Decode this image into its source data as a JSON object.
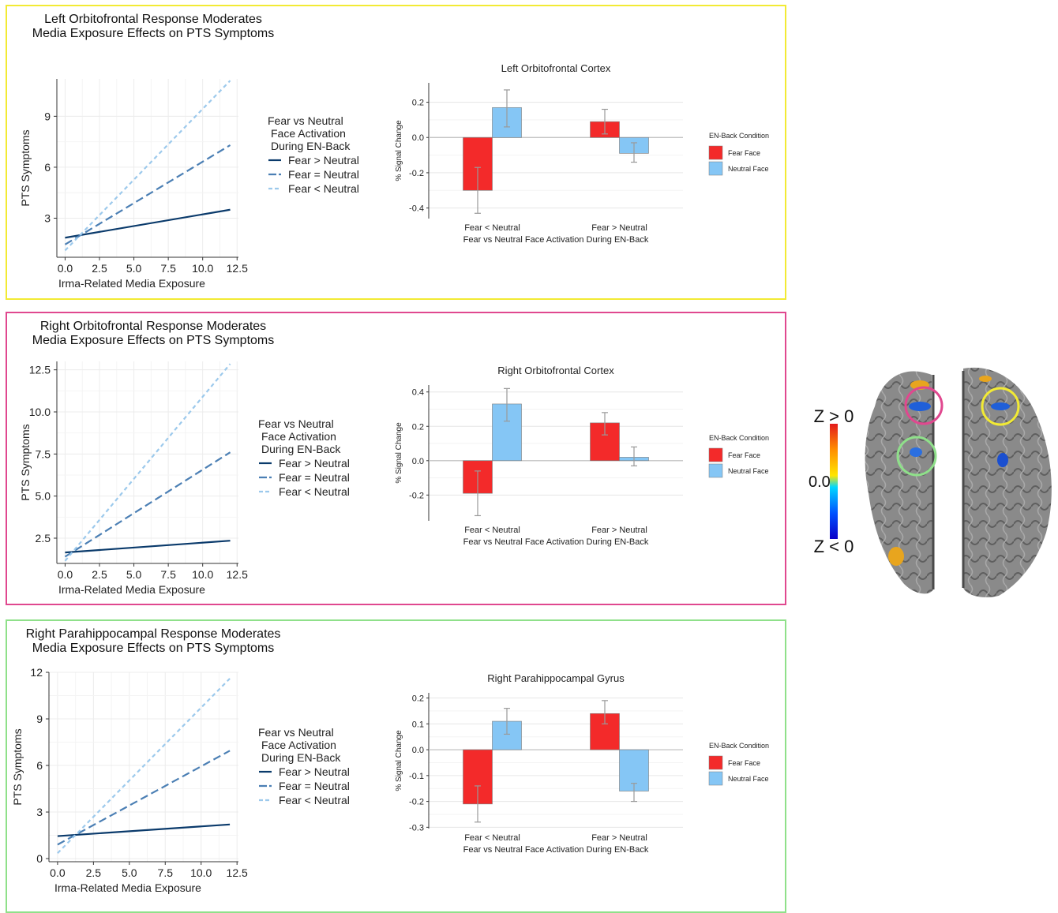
{
  "colors": {
    "panel_borders": [
      "#f2ea34",
      "#e0488f",
      "#8fe08a"
    ],
    "fear_gt": "#0a3a6b",
    "fear_eq": "#4b7fb4",
    "fear_lt": "#9cc9ec",
    "fear_face": "#f32a2a",
    "neutral_face": "#85c6f5",
    "circles": [
      "#e0488f",
      "#f2ea34",
      "#8fe08a"
    ]
  },
  "legend": {
    "title_line1": "Fear vs Neutral",
    "title_line2": "Face Activation",
    "title_line3": "During EN-Back",
    "items": [
      "Fear > Neutral",
      "Fear = Neutral",
      "Fear < Neutral"
    ]
  },
  "bar_legend": {
    "title": "EN-Back Condition",
    "items": [
      "Fear Face",
      "Neutral Face"
    ]
  },
  "brain": {
    "z_pos": "Z > 0",
    "zero": "0.0",
    "z_neg": "Z < 0"
  },
  "chart_data": [
    {
      "type": "line",
      "panel_title": "Left Orbitofrontal Response Moderates\nMedia Exposure Effects on PTS Symptoms",
      "xlabel": "Irma-Related Media Exposure",
      "ylabel": "PTS Symptoms",
      "xlim": [
        -0.6,
        12.6
      ],
      "ylim": [
        0.7,
        11.2
      ],
      "xticks": [
        "0.0",
        "2.5",
        "5.0",
        "7.5",
        "10.0",
        "12.5"
      ],
      "xtick_values": [
        0,
        2.5,
        5,
        7.5,
        10,
        12.5
      ],
      "yticks": [
        "3",
        "6",
        "9"
      ],
      "ytick_values": [
        3,
        6,
        9
      ],
      "series": [
        {
          "name": "Fear > Neutral",
          "x": [
            0,
            12
          ],
          "y": [
            1.85,
            3.5
          ]
        },
        {
          "name": "Fear = Neutral",
          "x": [
            0,
            12
          ],
          "y": [
            1.45,
            7.3
          ]
        },
        {
          "name": "Fear < Neutral",
          "x": [
            0,
            12
          ],
          "y": [
            1.1,
            11.1
          ]
        }
      ]
    },
    {
      "type": "bar",
      "title": "Left Orbitofrontal Cortex",
      "xlabel": "Fear vs Neutral Face Activation During EN-Back",
      "ylabel": "% Signal Change",
      "categories": [
        "Fear < Neutral",
        "Fear > Neutral"
      ],
      "ylim": [
        -0.46,
        0.31
      ],
      "yticks": [
        "0.2",
        "0.0",
        "-0.2",
        "-0.4"
      ],
      "ytick_values": [
        0.2,
        0,
        -0.2,
        -0.4
      ],
      "series": [
        {
          "name": "Fear Face",
          "values": [
            -0.3,
            0.09
          ],
          "err_low": [
            -0.43,
            0.02
          ],
          "err_high": [
            -0.17,
            0.16
          ]
        },
        {
          "name": "Neutral Face",
          "values": [
            0.17,
            -0.09
          ],
          "err_low": [
            0.06,
            -0.14
          ],
          "err_high": [
            0.27,
            -0.03
          ]
        }
      ]
    },
    {
      "type": "line",
      "panel_title": "Right Orbitofrontal Response Moderates\nMedia Exposure Effects on PTS Symptoms",
      "xlabel": "Irma-Related Media Exposure",
      "ylabel": "PTS Symptoms",
      "xlim": [
        -0.6,
        12.6
      ],
      "ylim": [
        1.0,
        13.0
      ],
      "xticks": [
        "0.0",
        "2.5",
        "5.0",
        "7.5",
        "10.0",
        "12.5"
      ],
      "xtick_values": [
        0,
        2.5,
        5,
        7.5,
        10,
        12.5
      ],
      "yticks": [
        "2.5",
        "5.0",
        "7.5",
        "10.0",
        "12.5"
      ],
      "ytick_values": [
        2.5,
        5,
        7.5,
        10,
        12.5
      ],
      "series": [
        {
          "name": "Fear > Neutral",
          "x": [
            0,
            12
          ],
          "y": [
            1.65,
            2.35
          ]
        },
        {
          "name": "Fear = Neutral",
          "x": [
            0,
            12
          ],
          "y": [
            1.4,
            7.6
          ]
        },
        {
          "name": "Fear < Neutral",
          "x": [
            0,
            12
          ],
          "y": [
            1.15,
            12.85
          ]
        }
      ]
    },
    {
      "type": "bar",
      "title": "Right Orbitofrontal Cortex",
      "xlabel": "Fear vs Neutral Face Activation During EN-Back",
      "ylabel": "% Signal Change",
      "categories": [
        "Fear < Neutral",
        "Fear > Neutral"
      ],
      "ylim": [
        -0.35,
        0.44
      ],
      "yticks": [
        "0.4",
        "0.2",
        "0.0",
        "-0.2"
      ],
      "ytick_values": [
        0.4,
        0.2,
        0,
        -0.2
      ],
      "series": [
        {
          "name": "Fear Face",
          "values": [
            -0.19,
            0.22
          ],
          "err_low": [
            -0.32,
            0.15
          ],
          "err_high": [
            -0.06,
            0.28
          ]
        },
        {
          "name": "Neutral Face",
          "values": [
            0.33,
            0.02
          ],
          "err_low": [
            0.23,
            -0.03
          ],
          "err_high": [
            0.42,
            0.08
          ]
        }
      ]
    },
    {
      "type": "line",
      "panel_title": "Right Parahippocampal Response Moderates\nMedia Exposure Effects on PTS Symptoms",
      "xlabel": "Irma-Related Media Exposure",
      "ylabel": "PTS Symptoms",
      "xlim": [
        -0.6,
        12.6
      ],
      "ylim": [
        -0.2,
        12.0
      ],
      "xticks": [
        "0.0",
        "2.5",
        "5.0",
        "7.5",
        "10.0",
        "12.5"
      ],
      "xtick_values": [
        0,
        2.5,
        5,
        7.5,
        10,
        12.5
      ],
      "yticks": [
        "0",
        "3",
        "6",
        "9",
        "12"
      ],
      "ytick_values": [
        0,
        3,
        6,
        9,
        12
      ],
      "series": [
        {
          "name": "Fear > Neutral",
          "x": [
            0,
            12
          ],
          "y": [
            1.45,
            2.2
          ]
        },
        {
          "name": "Fear = Neutral",
          "x": [
            0,
            12
          ],
          "y": [
            0.9,
            6.95
          ]
        },
        {
          "name": "Fear < Neutral",
          "x": [
            0,
            12
          ],
          "y": [
            0.35,
            11.6
          ]
        }
      ]
    },
    {
      "type": "bar",
      "title": "Right Parahippocampal Gyrus",
      "xlabel": "Fear vs Neutral Face Activation During EN-Back",
      "ylabel": "% Signal Change",
      "categories": [
        "Fear < Neutral",
        "Fear > Neutral"
      ],
      "ylim": [
        -0.305,
        0.22
      ],
      "yticks": [
        "0.2",
        "0.1",
        "0.0",
        "-0.1",
        "-0.2",
        "-0.3"
      ],
      "ytick_values": [
        0.2,
        0.1,
        0,
        -0.1,
        -0.2,
        -0.3
      ],
      "series": [
        {
          "name": "Fear Face",
          "values": [
            -0.21,
            0.14
          ],
          "err_low": [
            -0.28,
            0.1
          ],
          "err_high": [
            -0.14,
            0.19
          ]
        },
        {
          "name": "Neutral Face",
          "values": [
            0.11,
            -0.16
          ],
          "err_low": [
            0.06,
            -0.2
          ],
          "err_high": [
            0.16,
            -0.13
          ]
        }
      ]
    }
  ]
}
